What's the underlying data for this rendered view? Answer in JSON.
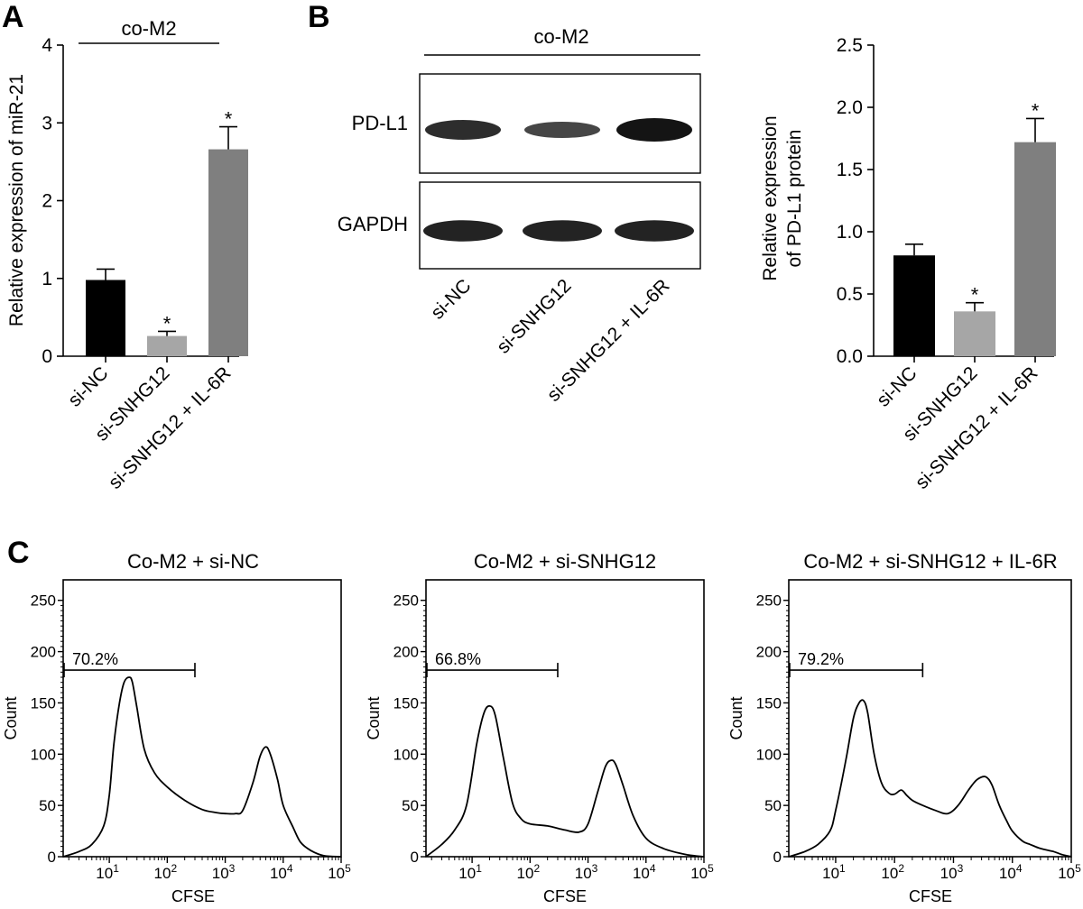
{
  "panels": {
    "A": {
      "letter": "A",
      "group_label": "co-M2",
      "ylabel": "Relative expression of miR-21",
      "yticks": [
        "0",
        "1",
        "2",
        "3",
        "4"
      ],
      "star": "*"
    },
    "B": {
      "letter": "B",
      "group_label": "co-M2",
      "blot_rows": [
        "PD-L1",
        "GAPDH"
      ],
      "lanes": [
        "si-NC",
        "si-SNHG12",
        "si-SNHG12 + IL-6R"
      ],
      "pdl1_band_intensity": [
        0.75,
        0.5,
        1.0
      ],
      "gapdh_band_intensity": [
        0.85,
        0.85,
        0.85
      ],
      "ylabel_line1": "Relative expression",
      "ylabel_line2": "of PD-L1 protein",
      "yticks": [
        "0.0",
        "0.5",
        "1.0",
        "1.5",
        "2.0",
        "2.5"
      ],
      "star": "*"
    },
    "C": {
      "letter": "C",
      "xlabel": "CFSE",
      "ylabel": "Count",
      "yticks": [
        "0",
        "50",
        "100",
        "150",
        "200",
        "250"
      ],
      "xtick_base": "10",
      "xtick_exps": [
        "1",
        "2",
        "3",
        "4",
        "5"
      ]
    }
  },
  "chart_data": [
    {
      "type": "bar",
      "panel": "A",
      "categories": [
        "si-NC",
        "si-SNHG12",
        "si-SNHG12 + IL-6R"
      ],
      "values": [
        0.98,
        0.26,
        2.66
      ],
      "errors": [
        0.14,
        0.06,
        0.29
      ],
      "significance": [
        "",
        "*",
        "*"
      ],
      "colors": [
        "#000000",
        "#a6a6a6",
        "#7f7f7f"
      ],
      "title": "",
      "xlabel": "",
      "ylabel": "Relative expression of miR-21",
      "ylim": [
        0,
        4
      ],
      "grid": false
    },
    {
      "type": "bar",
      "panel": "B",
      "categories": [
        "si-NC",
        "si-SNHG12",
        "si-SNHG12 + IL-6R"
      ],
      "values": [
        0.81,
        0.36,
        1.72
      ],
      "errors": [
        0.09,
        0.07,
        0.19
      ],
      "significance": [
        "",
        "*",
        "*"
      ],
      "colors": [
        "#000000",
        "#a6a6a6",
        "#7f7f7f"
      ],
      "title": "",
      "xlabel": "",
      "ylabel": "Relative expression of PD-L1 protein",
      "ylim": [
        0,
        2.5
      ],
      "grid": false
    },
    {
      "type": "line",
      "panel": "C1",
      "title": "Co-M2 + si-NC",
      "xlabel": "CFSE",
      "ylabel": "Count",
      "xscale": "log",
      "xlim": [
        1.6,
        100000
      ],
      "ylim": [
        0,
        270
      ],
      "gate": {
        "label": "70.2%",
        "x_range": [
          1.6,
          300
        ],
        "y": 182
      },
      "x": [
        1.6,
        3,
        5,
        8,
        10,
        12,
        15,
        18,
        22,
        25,
        30,
        40,
        60,
        100,
        200,
        400,
        700,
        1000,
        1500,
        2000,
        3000,
        4000,
        5000,
        6000,
        8000,
        10000,
        15000,
        20000,
        30000,
        50000,
        100000
      ],
      "y": [
        0,
        5,
        12,
        30,
        60,
        110,
        150,
        170,
        175,
        170,
        145,
        105,
        82,
        68,
        55,
        46,
        43,
        42,
        42,
        45,
        72,
        98,
        107,
        100,
        75,
        50,
        28,
        14,
        6,
        1,
        0
      ]
    },
    {
      "type": "line",
      "panel": "C2",
      "title": "Co-M2 + si-SNHG12",
      "xlabel": "CFSE",
      "ylabel": "Count",
      "xscale": "log",
      "xlim": [
        1.6,
        100000
      ],
      "ylim": [
        0,
        270
      ],
      "gate": {
        "label": "66.8%",
        "x_range": [
          1.6,
          300
        ],
        "y": 182
      },
      "x": [
        1.6,
        3,
        5,
        8,
        12,
        16,
        20,
        25,
        35,
        50,
        70,
        100,
        200,
        400,
        700,
        1000,
        1500,
        2000,
        2500,
        3000,
        4000,
        6000,
        10000,
        20000,
        50000,
        100000
      ],
      "y": [
        0,
        12,
        26,
        50,
        110,
        140,
        147,
        138,
        95,
        52,
        37,
        32,
        30,
        26,
        24,
        32,
        65,
        88,
        94,
        90,
        70,
        40,
        18,
        8,
        2,
        0
      ]
    },
    {
      "type": "line",
      "panel": "C3",
      "title": "Co-M2 + si-SNHG12 + IL-6R",
      "xlabel": "CFSE",
      "ylabel": "Count",
      "xscale": "log",
      "xlim": [
        1.6,
        100000
      ],
      "ylim": [
        0,
        270
      ],
      "gate": {
        "label": "79.2%",
        "x_range": [
          1.6,
          300
        ],
        "y": 182
      },
      "x": [
        1.6,
        3,
        5,
        8,
        10,
        15,
        20,
        25,
        30,
        35,
        45,
        60,
        80,
        100,
        130,
        160,
        200,
        300,
        500,
        800,
        1200,
        1800,
        2500,
        3500,
        4500,
        6000,
        8000,
        10000,
        15000,
        20000,
        30000,
        50000,
        70000,
        100000
      ],
      "y": [
        0,
        5,
        12,
        25,
        45,
        95,
        135,
        150,
        152,
        140,
        100,
        72,
        62,
        61,
        65,
        60,
        55,
        50,
        45,
        42,
        50,
        65,
        75,
        78,
        70,
        50,
        35,
        25,
        15,
        12,
        8,
        5,
        2,
        0
      ]
    }
  ]
}
